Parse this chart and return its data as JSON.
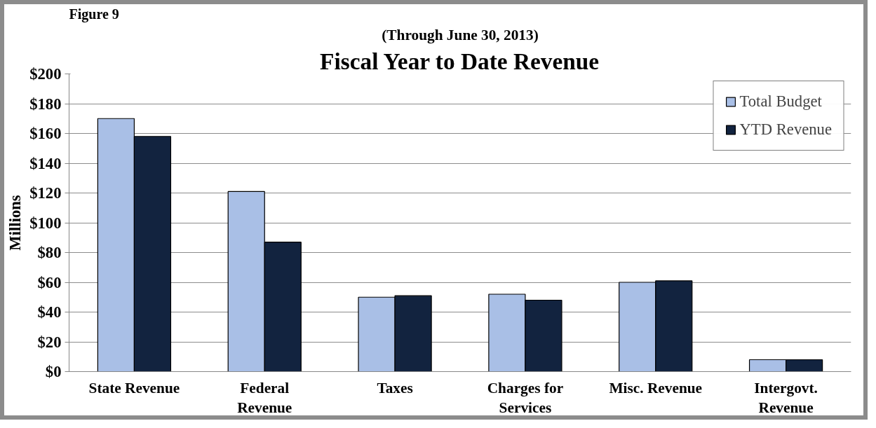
{
  "chart_data": {
    "type": "bar",
    "title": "Fiscal Year to Date Revenue",
    "subtitle": "(Through June 30, 2013)",
    "ylabel": "Millions",
    "annotations": [
      "Figure 9"
    ],
    "categories": [
      "State Revenue",
      "Federal Revenue",
      "Taxes",
      "Charges for Services",
      "Misc. Revenue",
      "Intergovt. Revenue"
    ],
    "series": [
      {
        "name": "Total Budget",
        "color": "#a9bfe6",
        "values": [
          170,
          121,
          50,
          52,
          60,
          8
        ]
      },
      {
        "name": "YTD Revenue",
        "color": "#12233f",
        "values": [
          158,
          87,
          51,
          48,
          61,
          8
        ]
      }
    ],
    "ylim": [
      0,
      200
    ],
    "yticks": [
      {
        "value": 0,
        "label": "$0"
      },
      {
        "value": 20,
        "label": "$20"
      },
      {
        "value": 40,
        "label": "$40"
      },
      {
        "value": 60,
        "label": "$60"
      },
      {
        "value": 80,
        "label": "$80"
      },
      {
        "value": 100,
        "label": "$100"
      },
      {
        "value": 120,
        "label": "$120"
      },
      {
        "value": 140,
        "label": "$140"
      },
      {
        "value": 160,
        "label": "$160"
      },
      {
        "value": 180,
        "label": "$180"
      },
      {
        "value": 200,
        "label": "$200"
      }
    ],
    "grid": "y",
    "legend": "top right"
  }
}
